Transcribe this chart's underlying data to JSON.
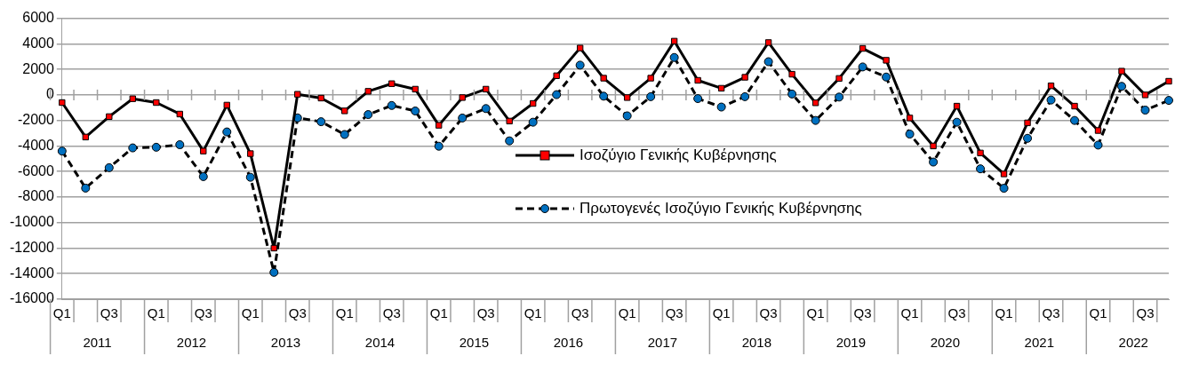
{
  "chart_data": {
    "type": "line",
    "categories": [
      "Q1",
      null,
      "Q3",
      null,
      "Q1",
      null,
      "Q3",
      null,
      "Q1",
      null,
      "Q3",
      null,
      "Q1",
      null,
      "Q3",
      null,
      "Q1",
      null,
      "Q3",
      null,
      "Q1",
      null,
      "Q3",
      null,
      "Q1",
      null,
      "Q3",
      null,
      "Q1",
      null,
      "Q3",
      null,
      "Q1",
      null,
      "Q3",
      null,
      "Q1",
      null,
      "Q3",
      null,
      "Q1",
      null,
      "Q3",
      null,
      "Q1",
      null,
      "Q3",
      null
    ],
    "series": [
      {
        "name": "Ισοζύγιο Γενικής Κυβέρνησης",
        "color": "#ff0000",
        "marker": "square",
        "line_style": "solid",
        "values": [
          -600,
          -3300,
          -1700,
          -300,
          -600,
          -1500,
          -4400,
          -800,
          -4600,
          -12000,
          50,
          -250,
          -1250,
          280,
          880,
          450,
          -2380,
          -210,
          450,
          -2050,
          -670,
          1500,
          3670,
          1310,
          -210,
          1310,
          4210,
          1140,
          520,
          1380,
          4100,
          1620,
          -620,
          1290,
          3640,
          2710,
          -1810,
          -4000,
          -880,
          -4550,
          -6190,
          -2190,
          710,
          -880,
          -2790,
          1860,
          0,
          1070
        ]
      },
      {
        "name": "Πρωτογενές Ισοζύγιο Γενικής Κυβέρνησης",
        "color": "#0070c0",
        "marker": "circle",
        "line_style": "dashed",
        "values": [
          -4400,
          -7300,
          -5700,
          -4150,
          -4100,
          -3900,
          -6400,
          -2900,
          -6450,
          -13900,
          -1800,
          -2100,
          -3100,
          -1540,
          -830,
          -1260,
          -4020,
          -1810,
          -1070,
          -3600,
          -2140,
          20,
          2330,
          -100,
          -1640,
          -140,
          2930,
          -290,
          -950,
          -140,
          2600,
          70,
          -2000,
          -170,
          2190,
          1400,
          -3070,
          -5260,
          -2140,
          -5790,
          -7310,
          -3400,
          -400,
          -2000,
          -3930,
          670,
          -1190,
          -430
        ]
      }
    ],
    "ylim": [
      -16000,
      6000
    ],
    "yticks": [
      -16000,
      -14000,
      -12000,
      -10000,
      -8000,
      -6000,
      -4000,
      -2000,
      0,
      2000,
      4000,
      6000
    ],
    "grid": "y",
    "legend": "center",
    "annotations": [
      "2011",
      "2012",
      "2013",
      "2014",
      "2015",
      "2016",
      "2017",
      "2018",
      "2019",
      "2020",
      "2021",
      "2022"
    ]
  }
}
